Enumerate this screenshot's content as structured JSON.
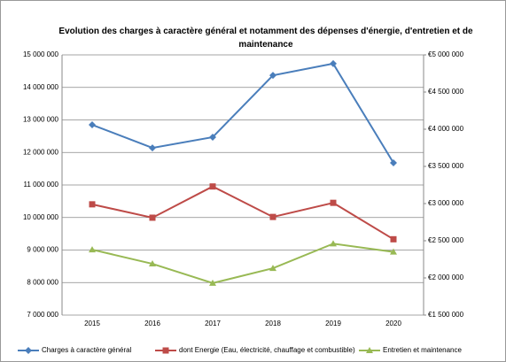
{
  "chart_data": {
    "type": "line",
    "title": "Evolution des charges à caractère général et notamment des dépenses d'énergie, d'entretien et de maintenance",
    "categories": [
      "2015",
      "2016",
      "2017",
      "2018",
      "2019",
      "2020"
    ],
    "series": [
      {
        "name": "Charges à caractère général",
        "color": "#4a7ebb",
        "marker": "diamond",
        "values": [
          12850000,
          12140000,
          12470000,
          14370000,
          14730000,
          11680000
        ]
      },
      {
        "name": "dont Energie (Eau, électricité, chauffage et combustible)",
        "color": "#be4b48",
        "marker": "square",
        "axis": "y2",
        "values": [
          2990000,
          2810000,
          3230000,
          2820000,
          3010000,
          2520000
        ]
      },
      {
        "name": "Entretien et maintenance",
        "color": "#98b954",
        "marker": "triangle",
        "axis": "y2",
        "values": [
          2380000,
          2190000,
          1930000,
          2130000,
          2460000,
          2350000
        ]
      }
    ],
    "ylim": [
      7000000,
      15000000
    ],
    "yticks": [
      {
        "value": 7000000,
        "label": "7 000 000"
      },
      {
        "value": 8000000,
        "label": "8 000 000"
      },
      {
        "value": 9000000,
        "label": "9 000 000"
      },
      {
        "value": 10000000,
        "label": "10 000 000"
      },
      {
        "value": 11000000,
        "label": "11 000 000"
      },
      {
        "value": 12000000,
        "label": "12 000 000"
      },
      {
        "value": 13000000,
        "label": "13 000 000"
      },
      {
        "value": 14000000,
        "label": "14 000 000"
      },
      {
        "value": 15000000,
        "label": "15 000 000"
      }
    ],
    "y2lim": [
      1500000,
      5000000
    ],
    "y2ticks": [
      {
        "value": 1500000,
        "label": "€1 500 000"
      },
      {
        "value": 2000000,
        "label": "€2 000 000"
      },
      {
        "value": 2500000,
        "label": "€2 500 000"
      },
      {
        "value": 3000000,
        "label": "€3 000 000"
      },
      {
        "value": 3500000,
        "label": "€3 500 000"
      },
      {
        "value": 4000000,
        "label": "€4 000 000"
      },
      {
        "value": 4500000,
        "label": "€4 500 000"
      },
      {
        "value": 5000000,
        "label": "€5 000 000"
      }
    ],
    "grid": true,
    "legend": "bottom"
  }
}
